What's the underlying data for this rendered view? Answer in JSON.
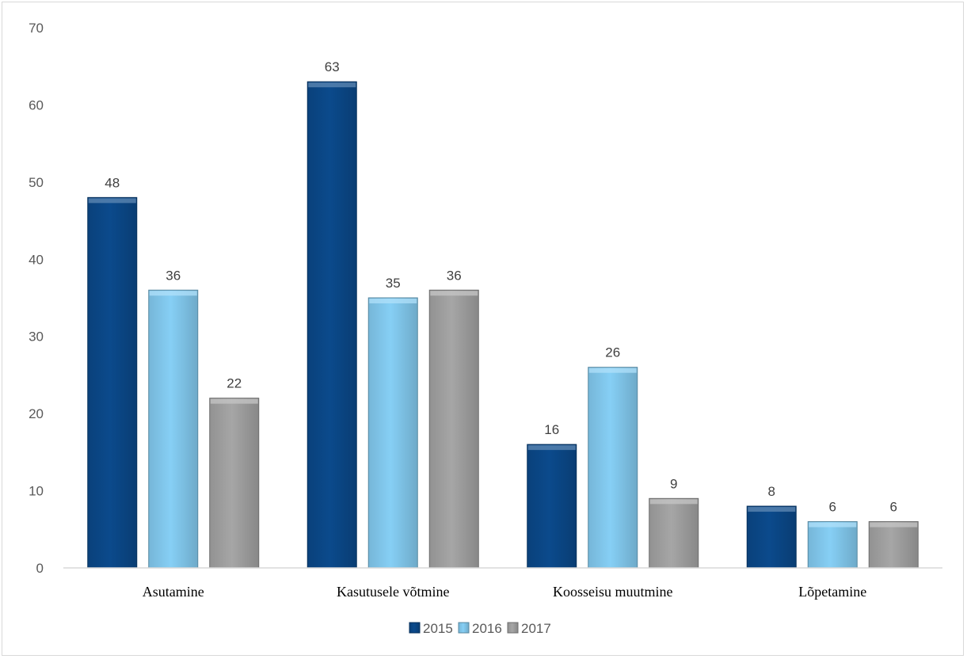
{
  "chart_data": {
    "type": "bar",
    "categories": [
      "Asutamine",
      "Kasutusele võtmine",
      "Koosseisu muutmine",
      "Lõpetamine"
    ],
    "series": [
      {
        "name": "2015",
        "values": [
          48,
          63,
          16,
          8
        ],
        "color": "#0b4a8c"
      },
      {
        "name": "2016",
        "values": [
          36,
          35,
          26,
          6
        ],
        "color": "#86cff5"
      },
      {
        "name": "2017",
        "values": [
          22,
          36,
          9,
          6
        ],
        "color": "#a6a6a6"
      }
    ],
    "yticks": [
      "0",
      "10",
      "20",
      "30",
      "40",
      "50",
      "60",
      "70"
    ],
    "ylim": [
      0,
      70
    ],
    "grid": false,
    "legend": "bottom-center",
    "data_labels": true
  }
}
